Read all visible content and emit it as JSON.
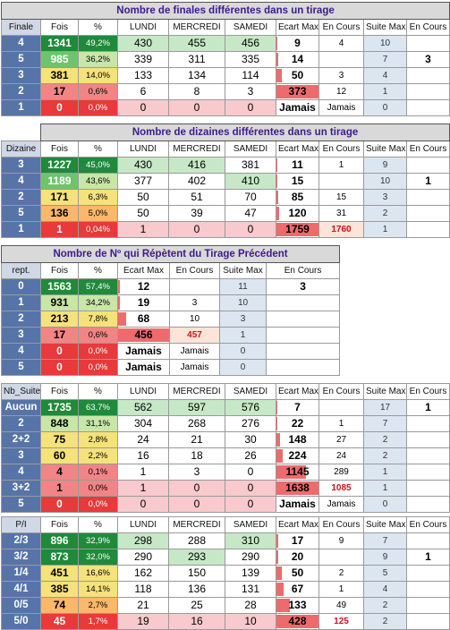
{
  "finales": {
    "title": "Nombre de finales différentes dans un tirage",
    "headers": [
      "Finale",
      "Fois",
      "%",
      "LUNDI",
      "MERCREDI",
      "SAMEDI",
      "Ecart Max",
      "En Cours",
      "Suite Max",
      "En Cours"
    ],
    "rows": [
      [
        "4",
        "1341",
        "49,2%",
        "430",
        "455",
        "456",
        "9",
        "4",
        "10",
        ""
      ],
      [
        "5",
        "985",
        "36,2%",
        "339",
        "311",
        "335",
        "14",
        "",
        "7",
        "3"
      ],
      [
        "3",
        "381",
        "14,0%",
        "133",
        "134",
        "114",
        "50",
        "3",
        "4",
        ""
      ],
      [
        "2",
        "17",
        "0,6%",
        "6",
        "8",
        "3",
        "373",
        "12",
        "1",
        ""
      ],
      [
        "1",
        "0",
        "0,0%",
        "0",
        "0",
        "0",
        "Jamais",
        "Jamais",
        "0",
        ""
      ]
    ]
  },
  "dizaines": {
    "title": "Nombre de dizaines différentes dans un tirage",
    "headers": [
      "Dizaine",
      "Fois",
      "%",
      "LUNDI",
      "MERCREDI",
      "SAMEDI",
      "Ecart Max",
      "En Cours",
      "Suite Max",
      "En Cours"
    ],
    "rows": [
      [
        "3",
        "1227",
        "45,0%",
        "430",
        "416",
        "381",
        "11",
        "1",
        "9",
        ""
      ],
      [
        "4",
        "1189",
        "43,6%",
        "377",
        "402",
        "410",
        "15",
        "",
        "10",
        "1"
      ],
      [
        "2",
        "171",
        "6,3%",
        "50",
        "51",
        "70",
        "85",
        "15",
        "3",
        ""
      ],
      [
        "5",
        "136",
        "5,0%",
        "50",
        "39",
        "47",
        "120",
        "31",
        "2",
        ""
      ],
      [
        "1",
        "1",
        "0,04%",
        "1",
        "0",
        "0",
        "1759",
        "1760",
        "1",
        ""
      ]
    ]
  },
  "repetes": {
    "title": "Nombre de Nº qui Répètent du Tirage Précédent",
    "headers": [
      "rept.",
      "Fois",
      "%",
      "Ecart Max",
      "En Cours",
      "Suite Max",
      "En Cours"
    ],
    "rows": [
      [
        "0",
        "1563",
        "57,4%",
        "12",
        "",
        "11",
        "3"
      ],
      [
        "1",
        "931",
        "34,2%",
        "19",
        "3",
        "10",
        ""
      ],
      [
        "2",
        "213",
        "7,8%",
        "68",
        "10",
        "3",
        ""
      ],
      [
        "3",
        "17",
        "0,6%",
        "456",
        "457",
        "1",
        ""
      ],
      [
        "4",
        "0",
        "0,0%",
        "Jamais",
        "Jamais",
        "0",
        ""
      ],
      [
        "5",
        "0",
        "0,0%",
        "Jamais",
        "Jamais",
        "0",
        ""
      ]
    ]
  },
  "suites": {
    "headers": [
      "Nb_Suite",
      "Fois",
      "%",
      "LUNDI",
      "MERCREDI",
      "SAMEDI",
      "Ecart Max",
      "En Cours",
      "Suite Max",
      "En Cours"
    ],
    "rows": [
      [
        "Aucun",
        "1735",
        "63,7%",
        "562",
        "597",
        "576",
        "7",
        "",
        "17",
        "1"
      ],
      [
        "2",
        "848",
        "31,1%",
        "304",
        "268",
        "276",
        "22",
        "1",
        "7",
        ""
      ],
      [
        "2+2",
        "75",
        "2,8%",
        "24",
        "21",
        "30",
        "148",
        "27",
        "2",
        ""
      ],
      [
        "3",
        "60",
        "2,2%",
        "16",
        "18",
        "26",
        "224",
        "24",
        "2",
        ""
      ],
      [
        "4",
        "4",
        "0,1%",
        "1",
        "3",
        "0",
        "1145",
        "289",
        "1",
        ""
      ],
      [
        "3+2",
        "1",
        "0,0%",
        "1",
        "0",
        "0",
        "1638",
        "1085",
        "1",
        ""
      ],
      [
        "5",
        "0",
        "0,0%",
        "0",
        "0",
        "0",
        "Jamais",
        "Jamais",
        "0",
        ""
      ]
    ]
  },
  "parite": {
    "headers": [
      "P/I",
      "Fois",
      "%",
      "LUNDI",
      "MERCREDI",
      "SAMEDI",
      "Ecart Max",
      "En Cours",
      "Suite Max",
      "En Cours"
    ],
    "rows": [
      [
        "2/3",
        "896",
        "32,9%",
        "298",
        "288",
        "310",
        "17",
        "9",
        "7",
        ""
      ],
      [
        "3/2",
        "873",
        "32,0%",
        "290",
        "293",
        "290",
        "20",
        "",
        "9",
        "1"
      ],
      [
        "1/4",
        "451",
        "16,6%",
        "162",
        "150",
        "139",
        "50",
        "2",
        "5",
        ""
      ],
      [
        "4/1",
        "385",
        "14,1%",
        "118",
        "136",
        "131",
        "67",
        "1",
        "4",
        ""
      ],
      [
        "0/5",
        "74",
        "2,7%",
        "21",
        "25",
        "28",
        "133",
        "49",
        "2",
        ""
      ],
      [
        "5/0",
        "45",
        "1,7%",
        "19",
        "16",
        "10",
        "428",
        "125",
        "2",
        ""
      ]
    ]
  }
}
